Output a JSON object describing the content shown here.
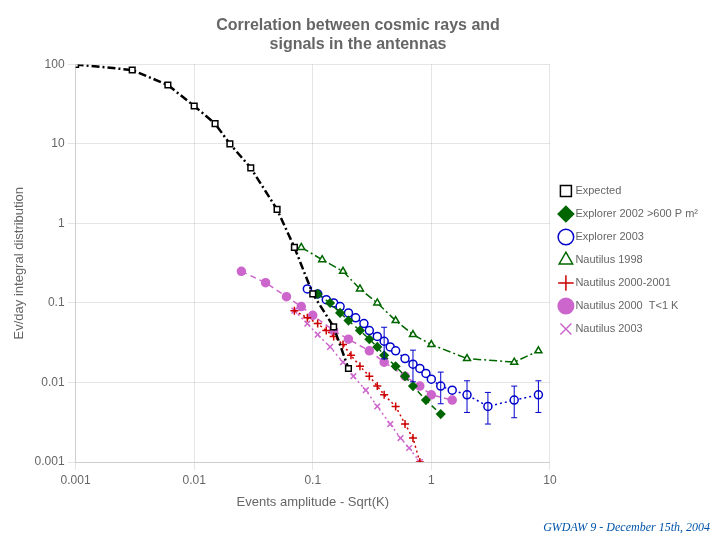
{
  "chart_data": {
    "type": "line",
    "title": [
      "Correlation between cosmic rays and",
      "signals in the antennas"
    ],
    "x_label": "Events amplitude - Sqrt(K)",
    "y_label": "Ev/day integral distribution",
    "annotations": [
      "GWDAW 9 - December 15th, 2004"
    ],
    "log": true,
    "grid": true,
    "legend": "right",
    "xlim": [
      0.001,
      10
    ],
    "ylim": [
      0.001,
      100
    ],
    "xticks": [
      0.001,
      0.01,
      0.1,
      1,
      10
    ],
    "yticks": [
      0.001,
      0.01,
      0.1,
      1,
      10,
      100
    ],
    "series": [
      {
        "name": "Expected",
        "color": "#000000",
        "marker": "square",
        "line_style": "dashdot",
        "x": [
          0.001,
          0.003,
          0.006,
          0.01,
          0.015,
          0.02,
          0.03,
          0.05,
          0.07,
          0.1,
          0.15,
          0.2
        ],
        "values": [
          100,
          85,
          55,
          30,
          18,
          10,
          5,
          1.5,
          0.5,
          0.13,
          0.05,
          0.015
        ]
      },
      {
        "name": "Explorer 2002 >600 P m²",
        "color": "#006600",
        "marker": "diamond",
        "line_style": "dashed",
        "x": [
          0.11,
          0.14,
          0.17,
          0.2,
          0.25,
          0.3,
          0.35,
          0.4,
          0.5,
          0.6,
          0.7,
          0.9,
          1.2
        ],
        "values": [
          0.13,
          0.1,
          0.075,
          0.06,
          0.045,
          0.035,
          0.028,
          0.022,
          0.016,
          0.012,
          0.009,
          0.006,
          0.004
        ]
      },
      {
        "name": "Explorer 2003",
        "color": "#0000cc",
        "marker": "circle",
        "line_style": "dotted",
        "x": [
          0.09,
          0.11,
          0.13,
          0.15,
          0.17,
          0.2,
          0.23,
          0.27,
          0.3,
          0.35,
          0.4,
          0.45,
          0.5,
          0.6,
          0.7,
          0.8,
          0.9,
          1.0,
          1.2,
          1.5,
          2.0,
          3.0,
          5.0,
          8.0
        ],
        "values": [
          0.15,
          0.13,
          0.11,
          0.1,
          0.09,
          0.075,
          0.065,
          0.055,
          0.045,
          0.038,
          0.033,
          0.028,
          0.025,
          0.02,
          0.017,
          0.015,
          0.013,
          0.011,
          0.009,
          0.008,
          0.007,
          0.005,
          0.006,
          0.007
        ],
        "error_minus": [
          null,
          null,
          null,
          null,
          null,
          null,
          null,
          null,
          null,
          null,
          0.0132,
          null,
          null,
          null,
          0.0068,
          null,
          null,
          null,
          0.0036,
          null,
          0.0028,
          0.002,
          0.0024,
          0.0028
        ],
        "error_plus": [
          null,
          null,
          null,
          null,
          null,
          null,
          null,
          null,
          null,
          null,
          0.0165,
          null,
          null,
          null,
          0.0085,
          null,
          null,
          null,
          0.0045,
          null,
          0.0035,
          0.0025,
          0.003,
          0.0035
        ]
      },
      {
        "name": "Nautilus 1998",
        "color": "#006600",
        "marker": "triangle",
        "line_style": "dashdot",
        "x": [
          0.08,
          0.12,
          0.18,
          0.25,
          0.35,
          0.5,
          0.7,
          1.0,
          2.0,
          5.0,
          8.0
        ],
        "values": [
          0.5,
          0.35,
          0.25,
          0.15,
          0.1,
          0.06,
          0.04,
          0.03,
          0.02,
          0.018,
          0.025
        ]
      },
      {
        "name": "Nautilus 2000-2001",
        "color": "#cc0000",
        "marker": "plus",
        "line_style": "dotted",
        "x": [
          0.07,
          0.09,
          0.11,
          0.13,
          0.15,
          0.18,
          0.21,
          0.25,
          0.3,
          0.35,
          0.4,
          0.5,
          0.6,
          0.7,
          0.8
        ],
        "values": [
          0.08,
          0.065,
          0.055,
          0.045,
          0.038,
          0.03,
          0.022,
          0.016,
          0.012,
          0.009,
          0.007,
          0.005,
          0.003,
          0.002,
          0.001
        ]
      },
      {
        "name": "Nautilus 2000  T<1 K",
        "color": "#cc66cc",
        "marker": "circle",
        "line_style": "dashed",
        "x": [
          0.025,
          0.04,
          0.06,
          0.08,
          0.1,
          0.15,
          0.2,
          0.3,
          0.4,
          0.6,
          0.8,
          1.0,
          1.5
        ],
        "values": [
          0.25,
          0.18,
          0.12,
          0.09,
          0.07,
          0.045,
          0.035,
          0.025,
          0.018,
          0.012,
          0.009,
          0.007,
          0.006
        ]
      },
      {
        "name": "Nautilus 2003",
        "color": "#cc66cc",
        "marker": "cross",
        "line_style": "dotted",
        "x": [
          0.07,
          0.09,
          0.11,
          0.14,
          0.18,
          0.22,
          0.28,
          0.35,
          0.45,
          0.55,
          0.65,
          0.8
        ],
        "values": [
          0.08,
          0.055,
          0.04,
          0.028,
          0.018,
          0.012,
          0.008,
          0.005,
          0.003,
          0.002,
          0.0015,
          0.001
        ]
      }
    ]
  }
}
